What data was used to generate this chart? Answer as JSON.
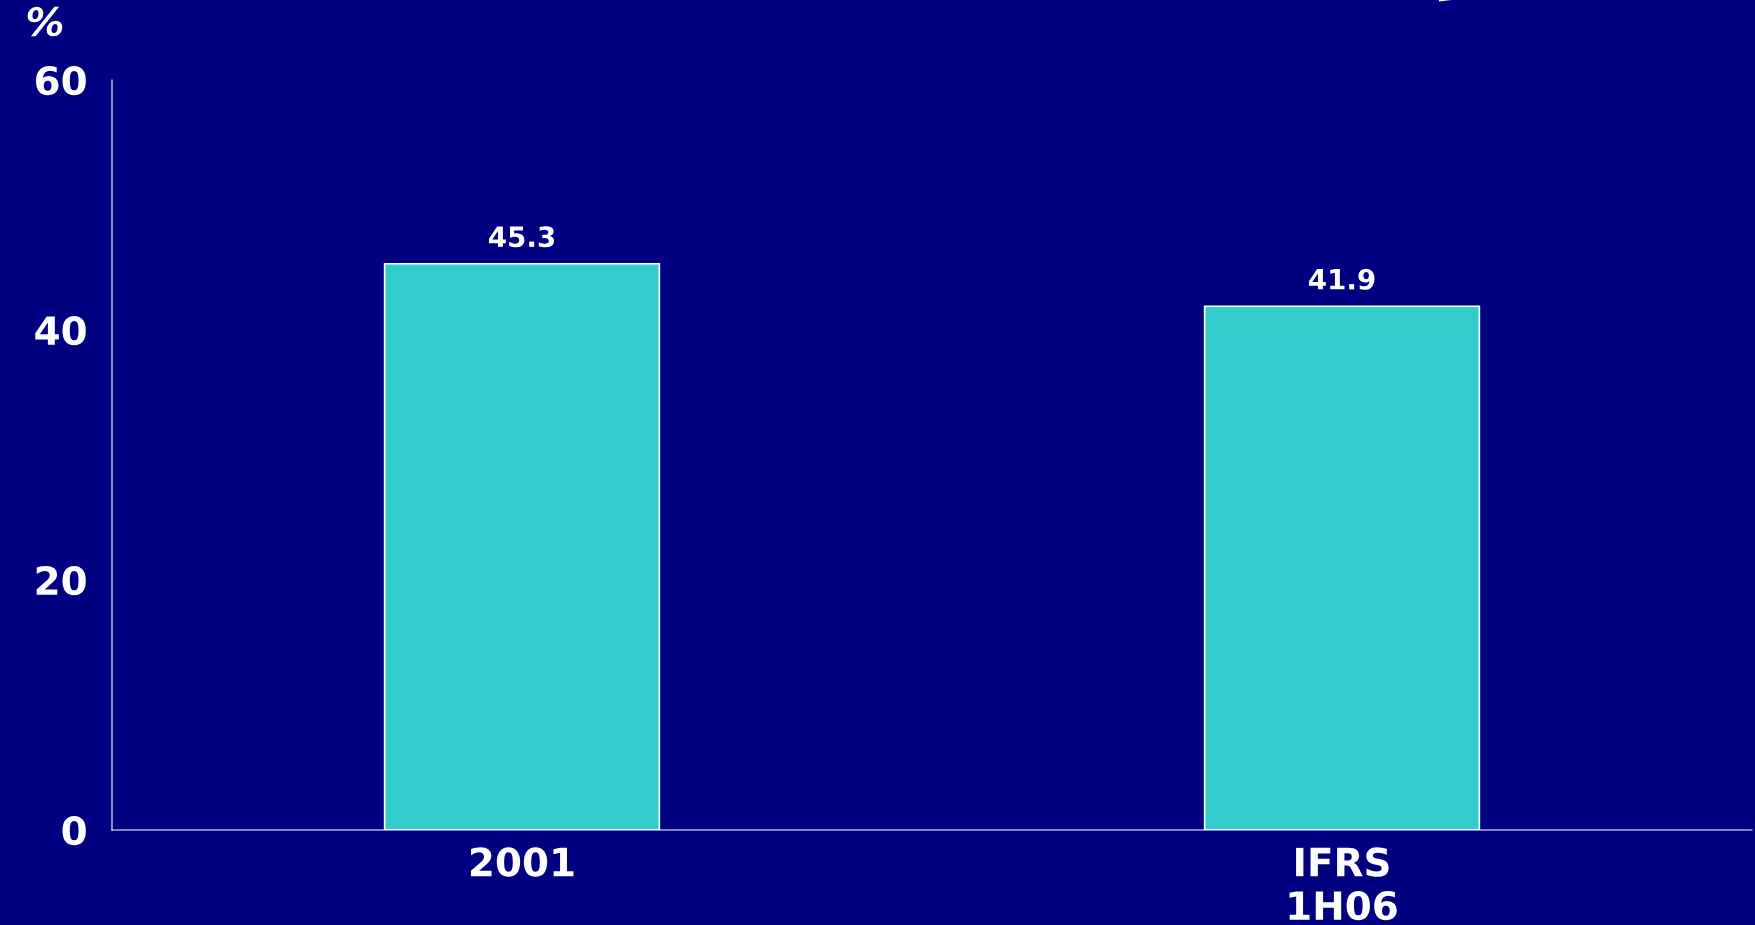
{
  "chart_data": {
    "type": "bar",
    "ylabel": "%",
    "categories": [
      "2001",
      "IFRS\n1H06"
    ],
    "values": [
      45.3,
      41.9
    ],
    "color": "#33cccc",
    "ylim": [
      0,
      60
    ],
    "yticks": [
      0,
      20,
      40,
      60
    ],
    "data_labels": true,
    "grid": false,
    "legend": false
  }
}
